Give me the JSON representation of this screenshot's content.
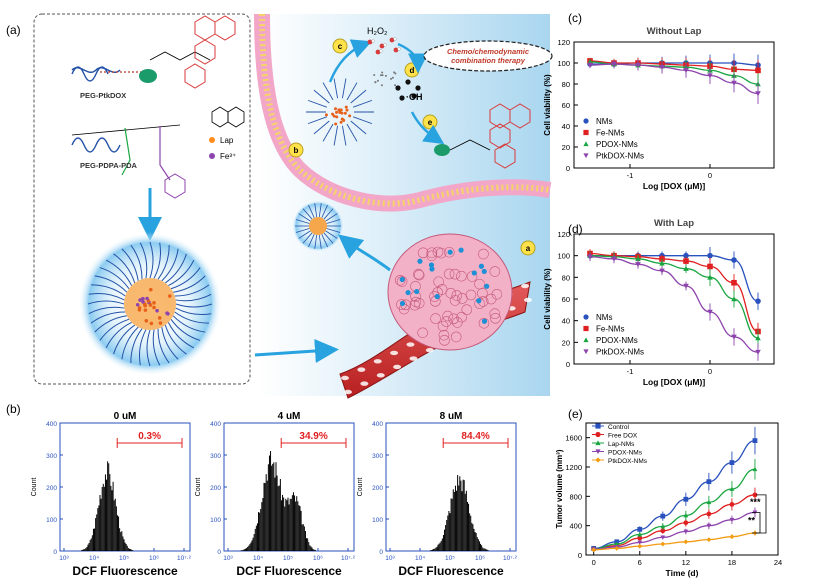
{
  "panel_labels": {
    "a": "(a)",
    "b": "(b)",
    "c": "(c)",
    "d": "(d)",
    "e": "(e)"
  },
  "schematic": {
    "mol_top_caption": "PEG-PtkDOX",
    "mol_bottom_caption": "PEG-PDPA-PDA",
    "legend_lap": "Lap",
    "legend_fe": "Fe³⁺",
    "h2o2": "H₂O₂",
    "oh_radical": "·OH",
    "therapy_label_1": "Chemo/chemodynamic",
    "therapy_label_2": "combination therapy",
    "step_a": "a",
    "step_b": "b",
    "step_c": "c",
    "step_d": "d",
    "step_e": "e",
    "colors": {
      "membrane": "#f2a7c9",
      "cell_bg": "#cde8f6",
      "vessel": "#d73a3a",
      "tumor": "#f3b1c8",
      "peg": "#2452a8",
      "dox": "#d93a3a"
    }
  },
  "flow": {
    "xlabel": "DCF Fluorescence",
    "ylabel": "Count",
    "y_ticks": [
      "0",
      "100",
      "200",
      "300",
      "400"
    ],
    "x_ticks": [
      "10³",
      "10⁴",
      "10⁵",
      "10⁶",
      "10⁷·²"
    ],
    "panels": [
      {
        "title": "0 uM",
        "gate": "0.3%"
      },
      {
        "title": "4 uM",
        "gate": "34.9%"
      },
      {
        "title": "8 uM",
        "gate": "84.4%"
      }
    ]
  },
  "chart_data": [
    {
      "type": "scatter",
      "title": "Without Lap",
      "xlabel": "Log [DOX (μM)]",
      "ylabel": "Cell viability (%)",
      "xlim": [
        -1.7,
        0.8
      ],
      "ylim": [
        0,
        120
      ],
      "x_ticks": [
        "-1",
        "0"
      ],
      "y_ticks": [
        "0",
        "20",
        "40",
        "60",
        "80",
        "100",
        "120"
      ],
      "x": [
        -1.5,
        -1.2,
        -0.9,
        -0.6,
        -0.3,
        0.0,
        0.3,
        0.6
      ],
      "series": [
        {
          "name": "NMs",
          "color": "#2a52be",
          "marker": "circle",
          "values": [
            99,
            99,
            100,
            100,
            100,
            100,
            100,
            98
          ]
        },
        {
          "name": "Fe-NMs",
          "color": "#e02020",
          "marker": "square",
          "values": [
            102,
            100,
            100,
            99,
            98,
            97,
            94,
            93
          ]
        },
        {
          "name": "PDOX-NMs",
          "color": "#1aa640",
          "marker": "triangle-up",
          "values": [
            101,
            99,
            98,
            97,
            96,
            93,
            88,
            80
          ]
        },
        {
          "name": "PtkDOX-NMs",
          "color": "#8e44ad",
          "marker": "triangle-down",
          "values": [
            98,
            99,
            98,
            96,
            93,
            88,
            81,
            71
          ]
        }
      ]
    },
    {
      "type": "scatter",
      "title": "With Lap",
      "xlabel": "Log [DOX (μM)]",
      "ylabel": "Cell viability (%)",
      "xlim": [
        -1.7,
        0.8
      ],
      "ylim": [
        0,
        120
      ],
      "x_ticks": [
        "-1",
        "0"
      ],
      "y_ticks": [
        "0",
        "20",
        "40",
        "60",
        "80",
        "100",
        "120"
      ],
      "x": [
        -1.5,
        -1.2,
        -0.9,
        -0.6,
        -0.3,
        0.0,
        0.3,
        0.6
      ],
      "series": [
        {
          "name": "NMs",
          "color": "#2a52be",
          "marker": "circle",
          "values": [
            100,
            100,
            100,
            100,
            100,
            100,
            96,
            58
          ]
        },
        {
          "name": "Fe-NMs",
          "color": "#e02020",
          "marker": "square",
          "values": [
            102,
            100,
            99,
            97,
            95,
            90,
            75,
            30
          ]
        },
        {
          "name": "PDOX-NMs",
          "color": "#1aa640",
          "marker": "triangle-up",
          "values": [
            100,
            99,
            97,
            93,
            88,
            80,
            60,
            24
          ]
        },
        {
          "name": "PtkDOX-NMs",
          "color": "#8e44ad",
          "marker": "triangle-down",
          "values": [
            99,
            97,
            92,
            86,
            72,
            48,
            25,
            11
          ]
        }
      ]
    },
    {
      "type": "line",
      "title": "",
      "xlabel": "Time (d)",
      "ylabel": "Tumor volume (mm³)",
      "xlim": [
        -1,
        24
      ],
      "ylim": [
        0,
        1800
      ],
      "x_ticks": [
        "0",
        "6",
        "12",
        "18",
        "24"
      ],
      "y_ticks": [
        "0",
        "400",
        "800",
        "1200",
        "1600"
      ],
      "x": [
        0,
        3,
        6,
        9,
        12,
        15,
        18,
        21
      ],
      "series": [
        {
          "name": "Control",
          "color": "#2a52be",
          "marker": "square",
          "values": [
            90,
            180,
            350,
            530,
            760,
            1000,
            1260,
            1560
          ]
        },
        {
          "name": "Free DOX",
          "color": "#e02020",
          "marker": "circle",
          "values": [
            80,
            130,
            230,
            330,
            440,
            560,
            690,
            820
          ]
        },
        {
          "name": "Lap-NMs",
          "color": "#1aa640",
          "marker": "triangle-up",
          "values": [
            85,
            150,
            280,
            390,
            540,
            720,
            900,
            1170
          ]
        },
        {
          "name": "PDOX-NMs",
          "color": "#8e44ad",
          "marker": "triangle-down",
          "values": [
            80,
            110,
            170,
            240,
            320,
            400,
            480,
            580
          ]
        },
        {
          "name": "PtkDOX-NMs",
          "color": "#f39c12",
          "marker": "diamond",
          "values": [
            70,
            90,
            120,
            150,
            180,
            210,
            250,
            300
          ]
        }
      ],
      "significance": [
        "***",
        "**"
      ]
    }
  ]
}
